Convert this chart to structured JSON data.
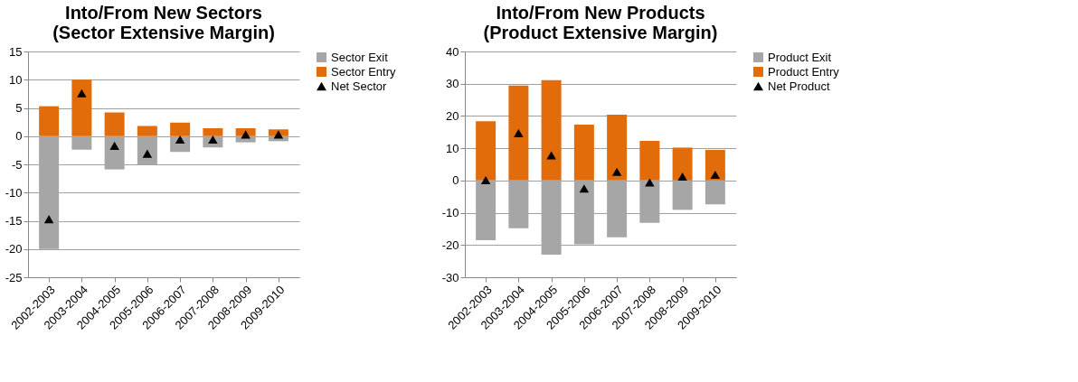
{
  "chart_data": [
    {
      "type": "bar",
      "title": "Into/From New Sectors\n(Sector Extensive Margin)",
      "categories": [
        "2002-2003",
        "2003-2004",
        "2004-2005",
        "2005-2006",
        "2006-2007",
        "2007-2008",
        "2008-2009",
        "2009-2010"
      ],
      "stacked": true,
      "series": [
        {
          "name": "Sector Exit",
          "color": "#a6a6a6",
          "values": [
            -20,
            -2.4,
            -5.9,
            -5.0,
            -2.8,
            -2.0,
            -1.1,
            -0.9
          ]
        },
        {
          "name": "Sector Entry",
          "color": "#e36c0a",
          "values": [
            5.3,
            10,
            4.2,
            1.8,
            2.4,
            1.4,
            1.4,
            1.2
          ]
        },
        {
          "name": "Net Sector",
          "type": "scatter",
          "marker": "triangle",
          "color": "#000000",
          "values": [
            -14.7,
            7.6,
            -1.7,
            -3.1,
            -0.6,
            -0.6,
            0.3,
            0.3
          ]
        }
      ],
      "ylim": [
        -25,
        15
      ],
      "yticks": [
        -25,
        -20,
        -15,
        -10,
        -5,
        0,
        5,
        10,
        15
      ],
      "grid": "y",
      "legend": "right"
    },
    {
      "type": "bar",
      "title": "Into/From New Products\n(Product Extensive Margin)",
      "categories": [
        "2002-2003",
        "2003-2004",
        "2004-2005",
        "2005-2006",
        "2006-2007",
        "2007-2008",
        "2008-2009",
        "2009-2010"
      ],
      "stacked": true,
      "series": [
        {
          "name": "Product Exit",
          "color": "#a6a6a6",
          "values": [
            -18.5,
            -14.8,
            -23,
            -19.8,
            -17.6,
            -13.1,
            -9.1,
            -7.4
          ]
        },
        {
          "name": "Product Entry",
          "color": "#e36c0a",
          "values": [
            18.4,
            29.4,
            31.1,
            17.3,
            20.4,
            12.3,
            10.2,
            9.5
          ]
        },
        {
          "name": "Net Product",
          "type": "scatter",
          "marker": "triangle",
          "color": "#000000",
          "values": [
            0.1,
            14.7,
            7.8,
            -2.5,
            2.7,
            -0.6,
            1.2,
            1.8
          ]
        }
      ],
      "ylim": [
        -30,
        40
      ],
      "yticks": [
        -30,
        -20,
        -10,
        0,
        10,
        20,
        30,
        40
      ],
      "grid": "y",
      "legend": "right"
    }
  ]
}
